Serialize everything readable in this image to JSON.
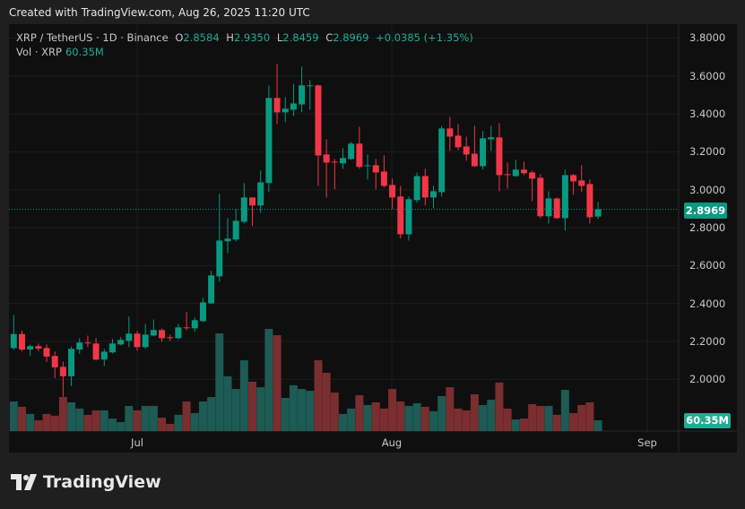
{
  "header": {
    "created": "Created with TradingView.com, Aug 26, 2025 11:20 UTC"
  },
  "legend": {
    "symbol": "XRP / TetherUS · 1D · Binance",
    "o_label": "O",
    "o": "2.8584",
    "h_label": "H",
    "h": "2.9350",
    "l_label": "L",
    "l": "2.8459",
    "c_label": "C",
    "c": "2.8969",
    "change": "+0.0385 (+1.35%)",
    "vol_label": "Vol · XRP",
    "vol": "60.35M"
  },
  "price_axis": {
    "current_price": "2.8969",
    "current_volume": "60.35M"
  },
  "brand": {
    "name": "TradingView"
  },
  "colors": {
    "up": "#089981",
    "down": "#f23645",
    "vol_up": "#1d5b54",
    "vol_down": "#7a2e30"
  },
  "chart_data": {
    "type": "candlestick",
    "title": "XRP / TetherUS · 1D · Binance",
    "x": [
      "2025-06-16",
      "2025-06-17",
      "2025-06-18",
      "2025-06-19",
      "2025-06-20",
      "2025-06-21",
      "2025-06-22",
      "2025-06-23",
      "2025-06-24",
      "2025-06-25",
      "2025-06-26",
      "2025-06-27",
      "2025-06-28",
      "2025-06-29",
      "2025-06-30",
      "2025-07-01",
      "2025-07-02",
      "2025-07-03",
      "2025-07-04",
      "2025-07-05",
      "2025-07-06",
      "2025-07-07",
      "2025-07-08",
      "2025-07-09",
      "2025-07-10",
      "2025-07-11",
      "2025-07-12",
      "2025-07-13",
      "2025-07-14",
      "2025-07-15",
      "2025-07-16",
      "2025-07-17",
      "2025-07-18",
      "2025-07-19",
      "2025-07-20",
      "2025-07-21",
      "2025-07-22",
      "2025-07-23",
      "2025-07-24",
      "2025-07-25",
      "2025-07-26",
      "2025-07-27",
      "2025-07-28",
      "2025-07-29",
      "2025-07-30",
      "2025-07-31",
      "2025-08-01",
      "2025-08-02",
      "2025-08-03",
      "2025-08-04",
      "2025-08-05",
      "2025-08-06",
      "2025-08-07",
      "2025-08-08",
      "2025-08-09",
      "2025-08-10",
      "2025-08-11",
      "2025-08-12",
      "2025-08-13",
      "2025-08-14",
      "2025-08-15",
      "2025-08-16",
      "2025-08-17",
      "2025-08-18",
      "2025-08-19",
      "2025-08-20",
      "2025-08-21",
      "2025-08-22",
      "2025-08-23",
      "2025-08-24",
      "2025-08-25",
      "2025-08-26"
    ],
    "ohlc": [
      [
        2.165,
        2.34,
        2.157,
        2.239
      ],
      [
        2.239,
        2.258,
        2.148,
        2.157
      ],
      [
        2.157,
        2.183,
        2.124,
        2.175
      ],
      [
        2.175,
        2.189,
        2.148,
        2.162
      ],
      [
        2.165,
        2.184,
        2.091,
        2.12
      ],
      [
        2.123,
        2.146,
        2.006,
        2.063
      ],
      [
        2.066,
        2.094,
        1.909,
        2.016
      ],
      [
        2.016,
        2.173,
        1.964,
        2.161
      ],
      [
        2.157,
        2.217,
        2.134,
        2.194
      ],
      [
        2.194,
        2.231,
        2.17,
        2.19
      ],
      [
        2.189,
        2.217,
        2.099,
        2.104
      ],
      [
        2.104,
        2.161,
        2.071,
        2.146
      ],
      [
        2.142,
        2.213,
        2.137,
        2.189
      ],
      [
        2.184,
        2.222,
        2.179,
        2.208
      ],
      [
        2.203,
        2.331,
        2.17,
        2.241
      ],
      [
        2.241,
        2.255,
        2.151,
        2.17
      ],
      [
        2.17,
        2.293,
        2.161,
        2.236
      ],
      [
        2.231,
        2.316,
        2.227,
        2.26
      ],
      [
        2.26,
        2.269,
        2.198,
        2.217
      ],
      [
        2.222,
        2.236,
        2.203,
        2.219
      ],
      [
        2.217,
        2.293,
        2.212,
        2.274
      ],
      [
        2.274,
        2.354,
        2.26,
        2.271
      ],
      [
        2.269,
        2.326,
        2.25,
        2.312
      ],
      [
        2.307,
        2.43,
        2.302,
        2.406
      ],
      [
        2.401,
        2.572,
        2.396,
        2.548
      ],
      [
        2.543,
        2.978,
        2.515,
        2.732
      ],
      [
        2.728,
        2.85,
        2.666,
        2.742
      ],
      [
        2.737,
        2.898,
        2.728,
        2.836
      ],
      [
        2.831,
        3.035,
        2.822,
        2.959
      ],
      [
        2.959,
        2.959,
        2.808,
        2.917
      ],
      [
        2.917,
        3.101,
        2.879,
        3.039
      ],
      [
        3.035,
        3.55,
        2.987,
        3.484
      ],
      [
        3.484,
        3.663,
        3.347,
        3.408
      ],
      [
        3.408,
        3.488,
        3.356,
        3.427
      ],
      [
        3.422,
        3.559,
        3.389,
        3.455
      ],
      [
        3.45,
        3.649,
        3.408,
        3.55
      ],
      [
        3.547,
        3.578,
        3.422,
        3.55
      ],
      [
        3.55,
        3.554,
        3.02,
        3.181
      ],
      [
        3.186,
        3.266,
        2.959,
        3.143
      ],
      [
        3.148,
        3.162,
        3.002,
        3.145
      ],
      [
        3.139,
        3.219,
        3.11,
        3.167
      ],
      [
        3.162,
        3.252,
        3.157,
        3.243
      ],
      [
        3.243,
        3.332,
        3.11,
        3.12
      ],
      [
        3.126,
        3.186,
        3.054,
        3.129
      ],
      [
        3.129,
        3.162,
        3.002,
        3.091
      ],
      [
        3.096,
        3.181,
        3.011,
        3.02
      ],
      [
        3.025,
        3.058,
        2.898,
        2.959
      ],
      [
        2.964,
        3.02,
        2.742,
        2.765
      ],
      [
        2.765,
        2.964,
        2.732,
        2.95
      ],
      [
        2.945,
        3.091,
        2.931,
        3.072
      ],
      [
        3.072,
        3.11,
        2.917,
        2.959
      ],
      [
        2.959,
        3.02,
        2.902,
        2.992
      ],
      [
        2.987,
        3.337,
        2.964,
        3.323
      ],
      [
        3.323,
        3.384,
        3.205,
        3.28
      ],
      [
        3.285,
        3.346,
        3.209,
        3.224
      ],
      [
        3.228,
        3.28,
        3.153,
        3.186
      ],
      [
        3.19,
        3.337,
        3.12,
        3.124
      ],
      [
        3.124,
        3.309,
        3.106,
        3.271
      ],
      [
        3.266,
        3.337,
        3.205,
        3.276
      ],
      [
        3.276,
        3.351,
        2.992,
        3.077
      ],
      [
        3.082,
        3.143,
        3.006,
        3.077
      ],
      [
        3.072,
        3.157,
        3.068,
        3.106
      ],
      [
        3.106,
        3.148,
        3.077,
        3.087
      ],
      [
        3.091,
        3.101,
        2.94,
        3.058
      ],
      [
        3.063,
        3.082,
        2.85,
        2.86
      ],
      [
        2.86,
        2.992,
        2.822,
        2.954
      ],
      [
        2.954,
        2.959,
        2.846,
        2.85
      ],
      [
        2.85,
        3.106,
        2.784,
        3.077
      ],
      [
        3.077,
        3.082,
        2.973,
        3.044
      ],
      [
        3.049,
        3.129,
        2.987,
        3.02
      ],
      [
        3.03,
        3.054,
        2.822,
        2.855
      ],
      [
        2.8584,
        2.935,
        2.8459,
        2.8969
      ]
    ],
    "volume_millions": [
      166,
      136,
      96,
      60,
      96,
      86,
      191,
      161,
      126,
      91,
      116,
      116,
      70,
      50,
      141,
      116,
      141,
      141,
      75,
      40,
      91,
      166,
      101,
      166,
      191,
      548,
      307,
      236,
      397,
      277,
      246,
      573,
      538,
      186,
      257,
      236,
      226,
      397,
      327,
      216,
      96,
      126,
      201,
      146,
      161,
      126,
      236,
      166,
      141,
      156,
      136,
      111,
      196,
      246,
      126,
      116,
      206,
      146,
      176,
      272,
      126,
      65,
      70,
      151,
      141,
      141,
      91,
      231,
      101,
      146,
      161,
      60.35
    ],
    "y_ticks": [
      "3.8000",
      "3.6000",
      "3.4000",
      "3.2000",
      "3.0000",
      "2.8000",
      "2.6000",
      "2.4000",
      "2.2000",
      "2.0000"
    ],
    "x_ticks": [
      "Jul",
      "Aug",
      "Sep"
    ],
    "ylim": [
      1.75,
      3.87
    ],
    "last_price": 2.8969,
    "grid": true
  }
}
